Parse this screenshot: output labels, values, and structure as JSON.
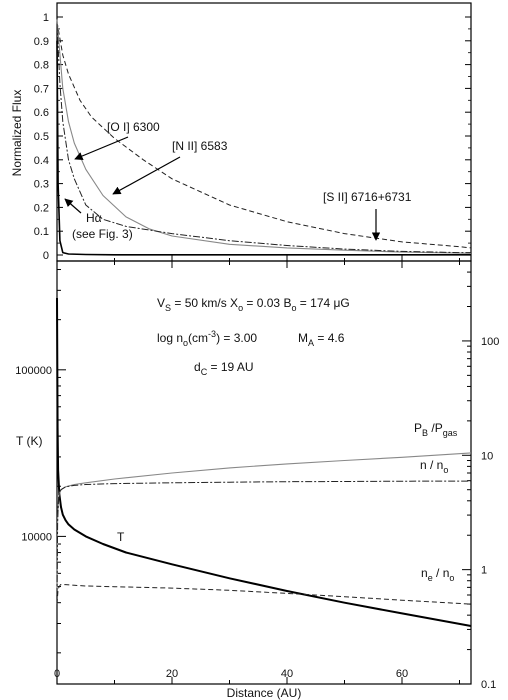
{
  "chart_data": [
    {
      "type": "line",
      "panel": "top",
      "ylabel": "Normalized Flux",
      "xlim": [
        0,
        72
      ],
      "ylim": [
        0,
        1
      ],
      "y_ticks": [
        "0",
        "0.1",
        "0.2",
        "0.3",
        "0.4",
        "0.5",
        "0.6",
        "0.7",
        "0.8",
        "0.9",
        "1"
      ],
      "grid": false,
      "series": [
        {
          "name": "[S II] 6716+6731",
          "style": "dashed",
          "x": [
            0,
            1,
            2,
            4,
            6,
            10,
            15,
            20,
            30,
            40,
            50,
            60,
            70,
            72
          ],
          "y": [
            0.98,
            0.84,
            0.76,
            0.65,
            0.58,
            0.49,
            0.4,
            0.32,
            0.21,
            0.14,
            0.09,
            0.055,
            0.035,
            0.03
          ]
        },
        {
          "name": "[N II] 6583",
          "style": "solid-gray",
          "x": [
            0,
            1,
            2,
            3,
            5,
            8,
            12,
            16,
            20,
            30,
            40,
            50,
            60,
            70,
            72
          ],
          "y": [
            0.99,
            0.7,
            0.56,
            0.47,
            0.36,
            0.25,
            0.16,
            0.11,
            0.08,
            0.045,
            0.03,
            0.02,
            0.012,
            0.008,
            0.007
          ]
        },
        {
          "name": "[O I] 6300",
          "style": "dash-dot",
          "x": [
            0,
            0.5,
            1,
            2,
            3,
            5,
            8,
            12,
            20,
            30,
            40,
            50,
            60,
            70,
            72
          ],
          "y": [
            0.97,
            0.72,
            0.56,
            0.4,
            0.32,
            0.21,
            0.15,
            0.12,
            0.09,
            0.06,
            0.04,
            0.025,
            0.015,
            0.01,
            0.01
          ]
        },
        {
          "name": "Hα",
          "style": "solid-black",
          "x": [
            0,
            0.2,
            0.5,
            1,
            2,
            5,
            10,
            30,
            50,
            72
          ],
          "y": [
            0.9,
            0.3,
            0.06,
            0.01,
            0.004,
            0.002,
            0.001,
            0.001,
            0.001,
            0.001
          ]
        }
      ],
      "annotations": [
        {
          "text": "[O I] 6300"
        },
        {
          "text": "[N II] 6583"
        },
        {
          "text": "[S II] 6716+6731"
        },
        {
          "text": "Hα"
        },
        {
          "text": "(see Fig. 3)"
        }
      ]
    },
    {
      "type": "line",
      "panel": "bottom",
      "xlabel": "Distance (AU)",
      "ylabel": "T (K)",
      "xlim": [
        0,
        72
      ],
      "x_ticks": [
        "0",
        "20",
        "40",
        "60"
      ],
      "y_scale": "log",
      "ylim": [
        1300,
        450000
      ],
      "y_ticks": [
        "10000",
        "100000"
      ],
      "y2_scale": "log",
      "y2lim": [
        0.1,
        500
      ],
      "y2_ticks": [
        "0.1",
        "1",
        "10",
        "100"
      ],
      "grid": false,
      "params": {
        "line1": [
          "V",
          "S",
          " = 50 km/s   X",
          "o",
          " = 0.03   B",
          "o",
          " = 174 μG"
        ],
        "line2": [
          "log n",
          "o",
          "(cm",
          "-3",
          ") = 3.00",
          "M",
          "A",
          " = 4.6"
        ],
        "line3": [
          "d",
          "C",
          " =  19 AU"
        ]
      },
      "series": [
        {
          "name": "T",
          "axis": "left",
          "style": "solid-black-thick",
          "x": [
            0,
            0.1,
            0.2,
            0.4,
            0.7,
            1,
            1.5,
            2,
            3,
            5,
            8,
            12,
            20,
            30,
            40,
            50,
            60,
            72
          ],
          "y": [
            270000,
            45000,
            25000,
            18000,
            15000,
            13500,
            12500,
            11800,
            11000,
            10000,
            9000,
            8000,
            6800,
            5600,
            4700,
            4000,
            3450,
            2900
          ]
        },
        {
          "name": "P_B / P_gas",
          "axis": "right",
          "style": "solid-gray",
          "x": [
            0,
            0.1,
            0.3,
            0.7,
            1.5,
            3,
            5,
            10,
            20,
            30,
            40,
            50,
            60,
            72
          ],
          "y": [
            0.65,
            2.8,
            4.4,
            5.0,
            5.3,
            5.55,
            5.75,
            6.2,
            7.0,
            7.75,
            8.4,
            9.0,
            9.6,
            10.5
          ]
        },
        {
          "name": "n / n_o",
          "axis": "right",
          "style": "dash-dot",
          "x": [
            0,
            0.1,
            0.3,
            0.7,
            1.5,
            3,
            5,
            10,
            20,
            30,
            40,
            50,
            60,
            72
          ],
          "y": [
            0.6,
            2.6,
            4.5,
            5.0,
            5.3,
            5.45,
            5.55,
            5.65,
            5.75,
            5.82,
            5.87,
            5.9,
            5.93,
            5.95
          ]
        },
        {
          "name": "n_e / n_o",
          "axis": "right",
          "style": "dashed",
          "x": [
            0,
            0.2,
            0.6,
            1.5,
            3,
            5,
            10,
            20,
            30,
            40,
            50,
            60,
            72
          ],
          "y": [
            0.5,
            0.68,
            0.74,
            0.74,
            0.73,
            0.72,
            0.71,
            0.69,
            0.66,
            0.62,
            0.58,
            0.54,
            0.5
          ]
        }
      ],
      "labels": {
        "T": "T",
        "pb_main": "P",
        "pb_sub1": "B",
        "pb_sep": " /P",
        "pb_sub2": "gas",
        "n_main": "n / n",
        "n_sub": "o",
        "ne_main": "n",
        "ne_sub1": "e",
        "ne_sep": " / n",
        "ne_sub2": "o"
      }
    }
  ]
}
